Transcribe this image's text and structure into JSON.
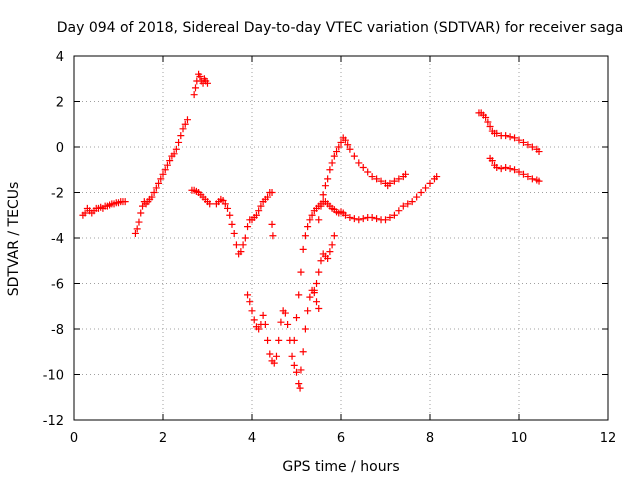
{
  "chart_data": {
    "type": "scatter",
    "title": "Day 094 of 2018, Sidereal Day-to-day VTEC variation (SDTVAR) for receiver saga",
    "xlabel": "GPS time / hours",
    "ylabel": "SDTVAR / TECUs",
    "xlim": [
      0,
      12
    ],
    "ylim": [
      -12,
      4
    ],
    "xticks": [
      0,
      2,
      4,
      6,
      8,
      10,
      12
    ],
    "yticks": [
      4,
      2,
      0,
      -2,
      -4,
      -6,
      -8,
      -10,
      -12
    ],
    "grid": true,
    "grid_style": "dotted",
    "marker": "+",
    "series_color": "#ff0000",
    "series": [
      {
        "name": "",
        "points": [
          [
            0.2,
            -3.0
          ],
          [
            0.25,
            -2.9
          ],
          [
            0.3,
            -2.7
          ],
          [
            0.35,
            -2.8
          ],
          [
            0.4,
            -2.9
          ],
          [
            0.45,
            -2.8
          ],
          [
            0.5,
            -2.7
          ],
          [
            0.55,
            -2.7
          ],
          [
            0.6,
            -2.65
          ],
          [
            0.65,
            -2.7
          ],
          [
            0.7,
            -2.6
          ],
          [
            0.75,
            -2.6
          ],
          [
            0.8,
            -2.55
          ],
          [
            0.85,
            -2.5
          ],
          [
            0.9,
            -2.5
          ],
          [
            0.95,
            -2.45
          ],
          [
            1.0,
            -2.45
          ],
          [
            1.05,
            -2.4
          ],
          [
            1.1,
            -2.4
          ],
          [
            1.15,
            -2.4
          ],
          [
            1.38,
            -3.8
          ],
          [
            1.42,
            -3.6
          ],
          [
            1.46,
            -3.3
          ],
          [
            1.5,
            -2.9
          ],
          [
            1.54,
            -2.6
          ],
          [
            1.58,
            -2.4
          ],
          [
            1.62,
            -2.5
          ],
          [
            1.66,
            -2.4
          ],
          [
            1.7,
            -2.3
          ],
          [
            1.75,
            -2.2
          ],
          [
            1.8,
            -2.0
          ],
          [
            1.85,
            -1.8
          ],
          [
            1.9,
            -1.6
          ],
          [
            1.95,
            -1.4
          ],
          [
            2.0,
            -1.2
          ],
          [
            2.05,
            -1.0
          ],
          [
            2.1,
            -0.8
          ],
          [
            2.15,
            -0.6
          ],
          [
            2.2,
            -0.4
          ],
          [
            2.25,
            -0.3
          ],
          [
            2.3,
            -0.1
          ],
          [
            2.35,
            0.2
          ],
          [
            2.4,
            0.5
          ],
          [
            2.45,
            0.8
          ],
          [
            2.5,
            1.0
          ],
          [
            2.55,
            1.2
          ],
          [
            2.7,
            2.3
          ],
          [
            2.73,
            2.6
          ],
          [
            2.76,
            2.9
          ],
          [
            2.8,
            3.2
          ],
          [
            2.83,
            3.1
          ],
          [
            2.86,
            2.9
          ],
          [
            2.9,
            2.8
          ],
          [
            2.93,
            3.0
          ],
          [
            2.96,
            2.9
          ],
          [
            3.0,
            2.8
          ],
          [
            2.65,
            -1.9
          ],
          [
            2.7,
            -1.9
          ],
          [
            2.75,
            -1.95
          ],
          [
            2.8,
            -2.0
          ],
          [
            2.85,
            -2.1
          ],
          [
            2.9,
            -2.2
          ],
          [
            2.95,
            -2.3
          ],
          [
            3.0,
            -2.4
          ],
          [
            3.05,
            -2.5
          ],
          [
            3.2,
            -2.5
          ],
          [
            3.25,
            -2.4
          ],
          [
            3.3,
            -2.3
          ],
          [
            3.35,
            -2.35
          ],
          [
            3.4,
            -2.5
          ],
          [
            3.45,
            -2.7
          ],
          [
            3.5,
            -3.0
          ],
          [
            3.55,
            -3.4
          ],
          [
            3.6,
            -3.8
          ],
          [
            3.65,
            -4.3
          ],
          [
            3.7,
            -4.7
          ],
          [
            3.75,
            -4.6
          ],
          [
            3.8,
            -4.3
          ],
          [
            3.85,
            -4.0
          ],
          [
            3.9,
            -3.5
          ],
          [
            3.95,
            -3.2
          ],
          [
            4.0,
            -3.2
          ],
          [
            4.05,
            -3.1
          ],
          [
            4.1,
            -3.0
          ],
          [
            4.15,
            -2.8
          ],
          [
            4.2,
            -2.6
          ],
          [
            4.25,
            -2.4
          ],
          [
            4.3,
            -2.3
          ],
          [
            4.35,
            -2.2
          ],
          [
            4.4,
            -2.0
          ],
          [
            4.45,
            -2.0
          ],
          [
            4.45,
            -3.4
          ],
          [
            4.47,
            -3.9
          ],
          [
            3.9,
            -6.5
          ],
          [
            3.95,
            -6.8
          ],
          [
            4.0,
            -7.2
          ],
          [
            4.05,
            -7.6
          ],
          [
            4.1,
            -7.9
          ],
          [
            4.15,
            -8.0
          ],
          [
            4.2,
            -7.8
          ],
          [
            4.25,
            -7.4
          ],
          [
            4.3,
            -7.8
          ],
          [
            4.35,
            -8.5
          ],
          [
            4.4,
            -9.1
          ],
          [
            4.45,
            -9.4
          ],
          [
            4.5,
            -9.5
          ],
          [
            4.55,
            -9.2
          ],
          [
            4.6,
            -8.5
          ],
          [
            4.65,
            -7.7
          ],
          [
            4.7,
            -7.2
          ],
          [
            4.75,
            -7.3
          ],
          [
            4.8,
            -7.8
          ],
          [
            4.85,
            -8.5
          ],
          [
            4.9,
            -9.2
          ],
          [
            4.95,
            -9.6
          ],
          [
            5.0,
            -9.9
          ],
          [
            5.05,
            -10.4
          ],
          [
            5.08,
            -10.6
          ],
          [
            5.1,
            -9.8
          ],
          [
            5.15,
            -9.0
          ],
          [
            5.2,
            -8.0
          ],
          [
            5.25,
            -7.2
          ],
          [
            5.3,
            -6.6
          ],
          [
            5.35,
            -6.3
          ],
          [
            5.4,
            -6.4
          ],
          [
            5.45,
            -6.8
          ],
          [
            5.5,
            -7.1
          ],
          [
            4.95,
            -8.5
          ],
          [
            5.0,
            -7.5
          ],
          [
            5.05,
            -6.5
          ],
          [
            5.1,
            -5.5
          ],
          [
            5.15,
            -4.5
          ],
          [
            5.2,
            -3.9
          ],
          [
            5.25,
            -3.5
          ],
          [
            5.3,
            -3.2
          ],
          [
            5.35,
            -3.0
          ],
          [
            5.4,
            -2.8
          ],
          [
            5.45,
            -2.7
          ],
          [
            5.5,
            -2.6
          ],
          [
            5.55,
            -2.5
          ],
          [
            5.6,
            -2.4
          ],
          [
            5.65,
            -2.4
          ],
          [
            5.7,
            -2.5
          ],
          [
            5.75,
            -2.6
          ],
          [
            5.8,
            -2.7
          ],
          [
            5.85,
            -2.75
          ],
          [
            5.9,
            -2.85
          ],
          [
            5.95,
            -2.9
          ],
          [
            6.0,
            -2.85
          ],
          [
            6.05,
            -2.9
          ],
          [
            6.1,
            -3.0
          ],
          [
            6.2,
            -3.1
          ],
          [
            6.3,
            -3.15
          ],
          [
            6.4,
            -3.2
          ],
          [
            6.5,
            -3.15
          ],
          [
            6.6,
            -3.1
          ],
          [
            6.7,
            -3.1
          ],
          [
            6.8,
            -3.15
          ],
          [
            6.9,
            -3.2
          ],
          [
            7.0,
            -3.2
          ],
          [
            7.1,
            -3.1
          ],
          [
            7.2,
            -3.0
          ],
          [
            7.3,
            -2.8
          ],
          [
            7.4,
            -2.6
          ],
          [
            7.5,
            -2.5
          ],
          [
            7.6,
            -2.4
          ],
          [
            7.7,
            -2.2
          ],
          [
            7.8,
            -2.0
          ],
          [
            7.9,
            -1.8
          ],
          [
            8.0,
            -1.6
          ],
          [
            8.1,
            -1.4
          ],
          [
            8.15,
            -1.3
          ],
          [
            5.4,
            -6.3
          ],
          [
            5.45,
            -6.0
          ],
          [
            5.5,
            -5.5
          ],
          [
            5.55,
            -5.0
          ],
          [
            5.6,
            -4.7
          ],
          [
            5.65,
            -4.8
          ],
          [
            5.7,
            -4.9
          ],
          [
            5.75,
            -4.6
          ],
          [
            5.8,
            -4.3
          ],
          [
            5.85,
            -3.9
          ],
          [
            5.5,
            -3.2
          ],
          [
            5.55,
            -2.6
          ],
          [
            5.6,
            -2.1
          ],
          [
            5.65,
            -1.7
          ],
          [
            5.7,
            -1.4
          ],
          [
            5.75,
            -1.0
          ],
          [
            5.8,
            -0.7
          ],
          [
            5.85,
            -0.4
          ],
          [
            5.9,
            -0.2
          ],
          [
            5.95,
            0.0
          ],
          [
            6.0,
            0.2
          ],
          [
            6.05,
            0.4
          ],
          [
            6.1,
            0.3
          ],
          [
            6.15,
            0.1
          ],
          [
            6.2,
            -0.1
          ],
          [
            6.3,
            -0.4
          ],
          [
            6.4,
            -0.7
          ],
          [
            6.5,
            -0.9
          ],
          [
            6.6,
            -1.1
          ],
          [
            6.7,
            -1.3
          ],
          [
            6.8,
            -1.4
          ],
          [
            6.9,
            -1.5
          ],
          [
            7.0,
            -1.6
          ],
          [
            7.05,
            -1.7
          ],
          [
            7.1,
            -1.6
          ],
          [
            7.2,
            -1.5
          ],
          [
            7.3,
            -1.4
          ],
          [
            7.4,
            -1.3
          ],
          [
            7.45,
            -1.2
          ],
          [
            9.1,
            1.5
          ],
          [
            9.15,
            1.5
          ],
          [
            9.2,
            1.4
          ],
          [
            9.25,
            1.3
          ],
          [
            9.3,
            1.1
          ],
          [
            9.35,
            0.9
          ],
          [
            9.4,
            0.7
          ],
          [
            9.45,
            0.6
          ],
          [
            9.5,
            0.6
          ],
          [
            9.6,
            0.5
          ],
          [
            9.7,
            0.5
          ],
          [
            9.8,
            0.45
          ],
          [
            9.9,
            0.4
          ],
          [
            10.0,
            0.3
          ],
          [
            10.1,
            0.2
          ],
          [
            10.2,
            0.1
          ],
          [
            10.3,
            0.0
          ],
          [
            10.4,
            -0.1
          ],
          [
            10.45,
            -0.2
          ],
          [
            9.35,
            -0.5
          ],
          [
            9.4,
            -0.6
          ],
          [
            9.45,
            -0.8
          ],
          [
            9.5,
            -0.9
          ],
          [
            9.6,
            -0.95
          ],
          [
            9.7,
            -0.9
          ],
          [
            9.8,
            -0.95
          ],
          [
            9.9,
            -1.0
          ],
          [
            10.0,
            -1.1
          ],
          [
            10.1,
            -1.2
          ],
          [
            10.2,
            -1.3
          ],
          [
            10.3,
            -1.4
          ],
          [
            10.4,
            -1.45
          ],
          [
            10.45,
            -1.5
          ]
        ]
      }
    ]
  }
}
